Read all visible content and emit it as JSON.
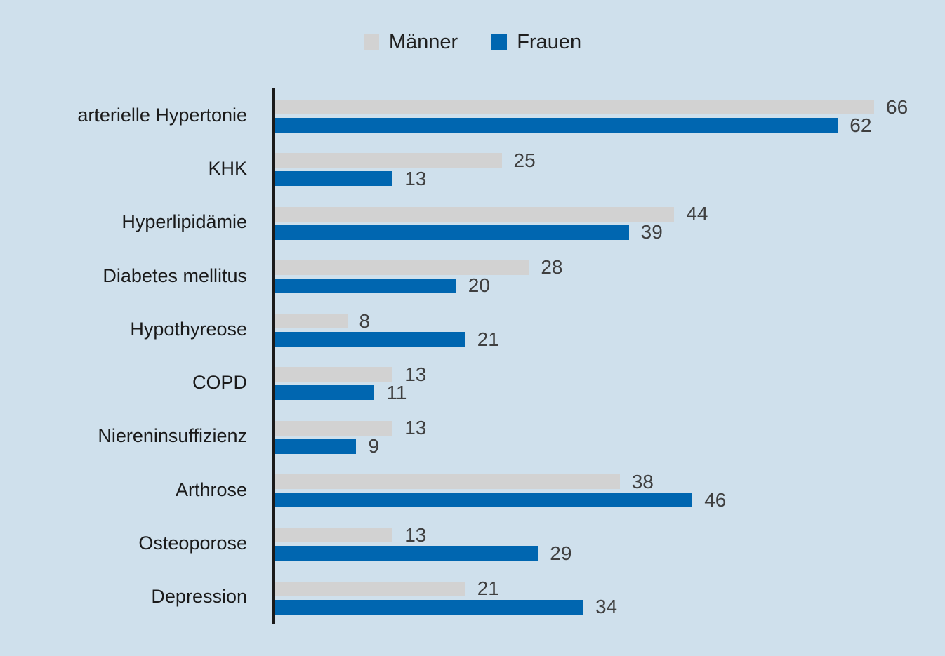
{
  "background_color": "#cfe0ec",
  "axis_color": "#1a1a1a",
  "value_label_color": "#3f3f3f",
  "legend": {
    "position": "top-center",
    "items": [
      {
        "label": "Männer",
        "color": "#d2d2d2"
      },
      {
        "label": "Frauen",
        "color": "#0066b0"
      }
    ]
  },
  "chart_data": {
    "type": "bar",
    "orientation": "horizontal",
    "title": "",
    "xlabel": "",
    "ylabel": "",
    "xlim": [
      0,
      70
    ],
    "grid": false,
    "value_labels": true,
    "legend_position": "top",
    "categories": [
      "arterielle Hypertonie",
      "KHK",
      "Hyperlipidämie",
      "Diabetes mellitus",
      "Hypothyreose",
      "COPD",
      "Niereninsuffizienz",
      "Arthrose",
      "Osteoporose",
      "Depression"
    ],
    "series": [
      {
        "name": "Männer",
        "color": "#d2d2d2",
        "values": [
          66,
          25,
          44,
          28,
          8,
          13,
          13,
          38,
          13,
          21
        ]
      },
      {
        "name": "Frauen",
        "color": "#0066b0",
        "values": [
          62,
          13,
          39,
          20,
          21,
          11,
          9,
          46,
          29,
          34
        ]
      }
    ]
  }
}
